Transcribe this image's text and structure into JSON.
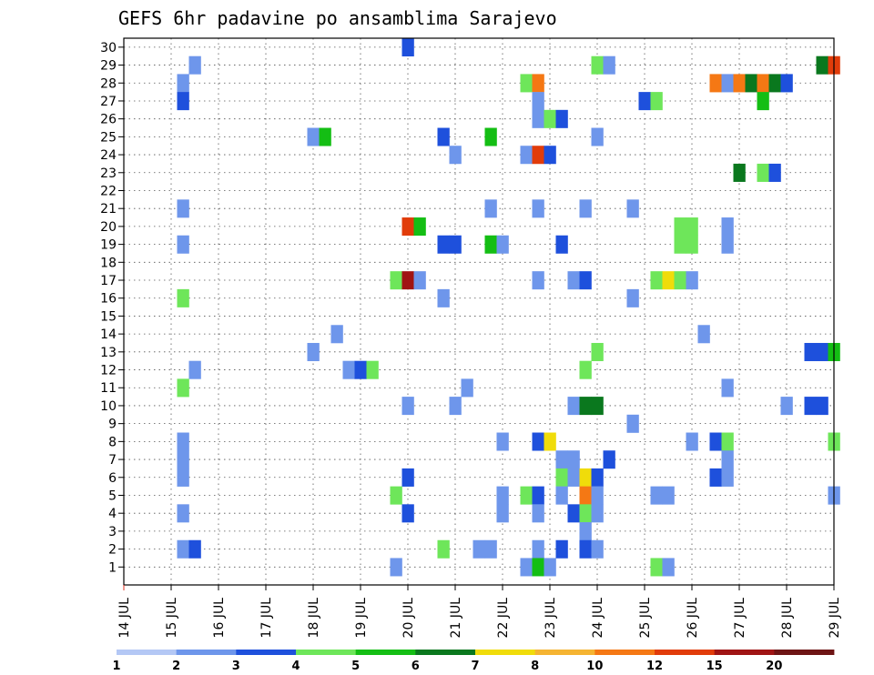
{
  "chart_data": {
    "type": "heatmap",
    "title": "GEFS 6hr padavine po ansamblima Sarajevo",
    "xlabel": "",
    "ylabel": "",
    "x_ticks": [
      "14 JUL",
      "15 JUL",
      "16 JUL",
      "17 JUL",
      "18 JUL",
      "19 JUL",
      "20 JUL",
      "21 JUL",
      "22 JUL",
      "23 JUL",
      "24 JUL",
      "25 JUL",
      "26 JUL",
      "27 JUL",
      "28 JUL",
      "29 JUL"
    ],
    "y_ticks": [
      "1",
      "2",
      "3",
      "4",
      "5",
      "6",
      "7",
      "8",
      "9",
      "10",
      "11",
      "12",
      "13",
      "14",
      "15",
      "16",
      "17",
      "18",
      "19",
      "20",
      "21",
      "22",
      "23",
      "24",
      "25",
      "26",
      "27",
      "28",
      "29",
      "30"
    ],
    "x_range_days": [
      14,
      29
    ],
    "time_step_hours": 6,
    "members": 30,
    "grid": "dotted",
    "legend": {
      "placement": "bottom",
      "labels": [
        "1",
        "2",
        "3",
        "4",
        "5",
        "6",
        "7",
        "8",
        "10",
        "12",
        "15",
        "20"
      ],
      "colors": [
        "#b4c8f5",
        "#6e96eb",
        "#1e50dc",
        "#6ee65a",
        "#14be14",
        "#0a781e",
        "#f0dc0a",
        "#f5b432",
        "#f57814",
        "#e13c0a",
        "#a01414",
        "#6e1414"
      ]
    },
    "cells": [
      [
        30,
        20,
        2
      ],
      [
        29,
        15.5,
        1
      ],
      [
        29,
        24,
        3
      ],
      [
        29,
        24.25,
        1
      ],
      [
        29,
        28.75,
        5
      ],
      [
        29,
        29,
        9
      ],
      [
        28,
        15.25,
        1
      ],
      [
        28,
        22.5,
        3
      ],
      [
        28,
        22.75,
        8
      ],
      [
        28,
        26.5,
        8
      ],
      [
        28,
        26.75,
        1
      ],
      [
        28,
        27,
        8
      ],
      [
        28,
        27.25,
        5
      ],
      [
        28,
        27.5,
        8
      ],
      [
        28,
        27.75,
        5
      ],
      [
        28,
        28,
        2
      ],
      [
        27,
        15.25,
        2
      ],
      [
        27,
        22.75,
        1
      ],
      [
        27,
        25,
        2
      ],
      [
        27,
        25.25,
        3
      ],
      [
        27,
        27.5,
        4
      ],
      [
        26,
        22.75,
        1
      ],
      [
        26,
        23,
        3
      ],
      [
        26,
        23.25,
        2
      ],
      [
        25,
        18,
        1
      ],
      [
        25,
        18.25,
        4
      ],
      [
        25,
        20.75,
        2
      ],
      [
        25,
        21.75,
        4
      ],
      [
        25,
        24,
        1
      ],
      [
        24,
        21,
        1
      ],
      [
        24,
        22.5,
        1
      ],
      [
        24,
        22.75,
        9
      ],
      [
        24,
        23,
        2
      ],
      [
        23,
        27,
        5
      ],
      [
        23,
        27.5,
        3
      ],
      [
        23,
        27.75,
        2
      ],
      [
        21,
        15.25,
        1
      ],
      [
        21,
        21.75,
        1
      ],
      [
        21,
        22.75,
        1
      ],
      [
        21,
        23.75,
        1
      ],
      [
        21,
        24.75,
        1
      ],
      [
        20,
        20,
        9
      ],
      [
        20,
        20.25,
        4
      ],
      [
        20,
        25.75,
        3
      ],
      [
        20,
        26,
        3
      ],
      [
        20,
        26.75,
        1
      ],
      [
        19,
        15.25,
        1
      ],
      [
        19,
        20.75,
        2
      ],
      [
        19,
        21,
        2
      ],
      [
        19,
        21.75,
        4
      ],
      [
        19,
        22,
        1
      ],
      [
        19,
        23.25,
        2
      ],
      [
        19,
        25.75,
        3
      ],
      [
        19,
        26,
        3
      ],
      [
        19,
        26.75,
        1
      ],
      [
        17,
        19.75,
        3
      ],
      [
        17,
        20,
        10
      ],
      [
        17,
        20.25,
        1
      ],
      [
        17,
        22.75,
        1
      ],
      [
        17,
        23.5,
        1
      ],
      [
        17,
        23.75,
        2
      ],
      [
        17,
        25.25,
        3
      ],
      [
        17,
        25.5,
        6
      ],
      [
        17,
        25.75,
        3
      ],
      [
        17,
        26,
        1
      ],
      [
        16,
        15.25,
        3
      ],
      [
        16,
        20.75,
        1
      ],
      [
        16,
        24.75,
        1
      ],
      [
        14,
        18.5,
        1
      ],
      [
        14,
        26.25,
        1
      ],
      [
        13,
        18,
        1
      ],
      [
        13,
        24,
        3
      ],
      [
        13,
        28.5,
        2
      ],
      [
        13,
        28.75,
        2
      ],
      [
        13,
        29,
        4
      ],
      [
        12,
        15.5,
        1
      ],
      [
        12,
        18.75,
        1
      ],
      [
        12,
        19,
        2
      ],
      [
        12,
        19.25,
        3
      ],
      [
        12,
        23.75,
        3
      ],
      [
        11,
        15.25,
        3
      ],
      [
        11,
        21.25,
        1
      ],
      [
        11,
        26.75,
        1
      ],
      [
        10,
        20,
        1
      ],
      [
        10,
        21,
        1
      ],
      [
        10,
        23.5,
        1
      ],
      [
        10,
        23.75,
        5
      ],
      [
        10,
        24,
        5
      ],
      [
        10,
        28,
        1
      ],
      [
        10,
        28.5,
        2
      ],
      [
        10,
        28.75,
        2
      ],
      [
        9,
        24.75,
        1
      ],
      [
        8,
        15.25,
        1
      ],
      [
        8,
        22,
        1
      ],
      [
        8,
        22.75,
        2
      ],
      [
        8,
        23,
        6
      ],
      [
        8,
        26,
        1
      ],
      [
        8,
        26.5,
        2
      ],
      [
        8,
        26.75,
        3
      ],
      [
        8,
        29,
        3
      ],
      [
        7,
        15.25,
        1
      ],
      [
        7,
        23.25,
        1
      ],
      [
        7,
        23.5,
        1
      ],
      [
        7,
        24.25,
        2
      ],
      [
        7,
        26.75,
        1
      ],
      [
        6,
        15.25,
        1
      ],
      [
        6,
        20,
        2
      ],
      [
        6,
        23.25,
        3
      ],
      [
        6,
        23.5,
        1
      ],
      [
        6,
        23.75,
        6
      ],
      [
        6,
        24,
        2
      ],
      [
        6,
        26.5,
        2
      ],
      [
        6,
        26.75,
        1
      ],
      [
        5,
        19.75,
        3
      ],
      [
        5,
        22,
        1
      ],
      [
        5,
        22.5,
        3
      ],
      [
        5,
        22.75,
        2
      ],
      [
        5,
        23.25,
        1
      ],
      [
        5,
        23.75,
        8
      ],
      [
        5,
        24,
        1
      ],
      [
        5,
        25.25,
        1
      ],
      [
        5,
        25.5,
        1
      ],
      [
        5,
        29,
        1
      ],
      [
        4,
        15.25,
        1
      ],
      [
        4,
        20,
        2
      ],
      [
        4,
        22,
        1
      ],
      [
        4,
        22.75,
        1
      ],
      [
        4,
        23.5,
        2
      ],
      [
        4,
        23.75,
        3
      ],
      [
        4,
        24,
        1
      ],
      [
        3,
        23.75,
        1
      ],
      [
        2,
        15.25,
        1
      ],
      [
        2,
        15.5,
        2
      ],
      [
        2,
        20.75,
        3
      ],
      [
        2,
        21.5,
        1
      ],
      [
        2,
        21.75,
        1
      ],
      [
        2,
        22.75,
        1
      ],
      [
        2,
        23.25,
        2
      ],
      [
        2,
        23.75,
        2
      ],
      [
        2,
        24,
        1
      ],
      [
        1,
        19.75,
        1
      ],
      [
        1,
        22.5,
        1
      ],
      [
        1,
        22.75,
        4
      ],
      [
        1,
        23,
        1
      ],
      [
        1,
        25.25,
        3
      ],
      [
        1,
        25.5,
        1
      ]
    ]
  }
}
